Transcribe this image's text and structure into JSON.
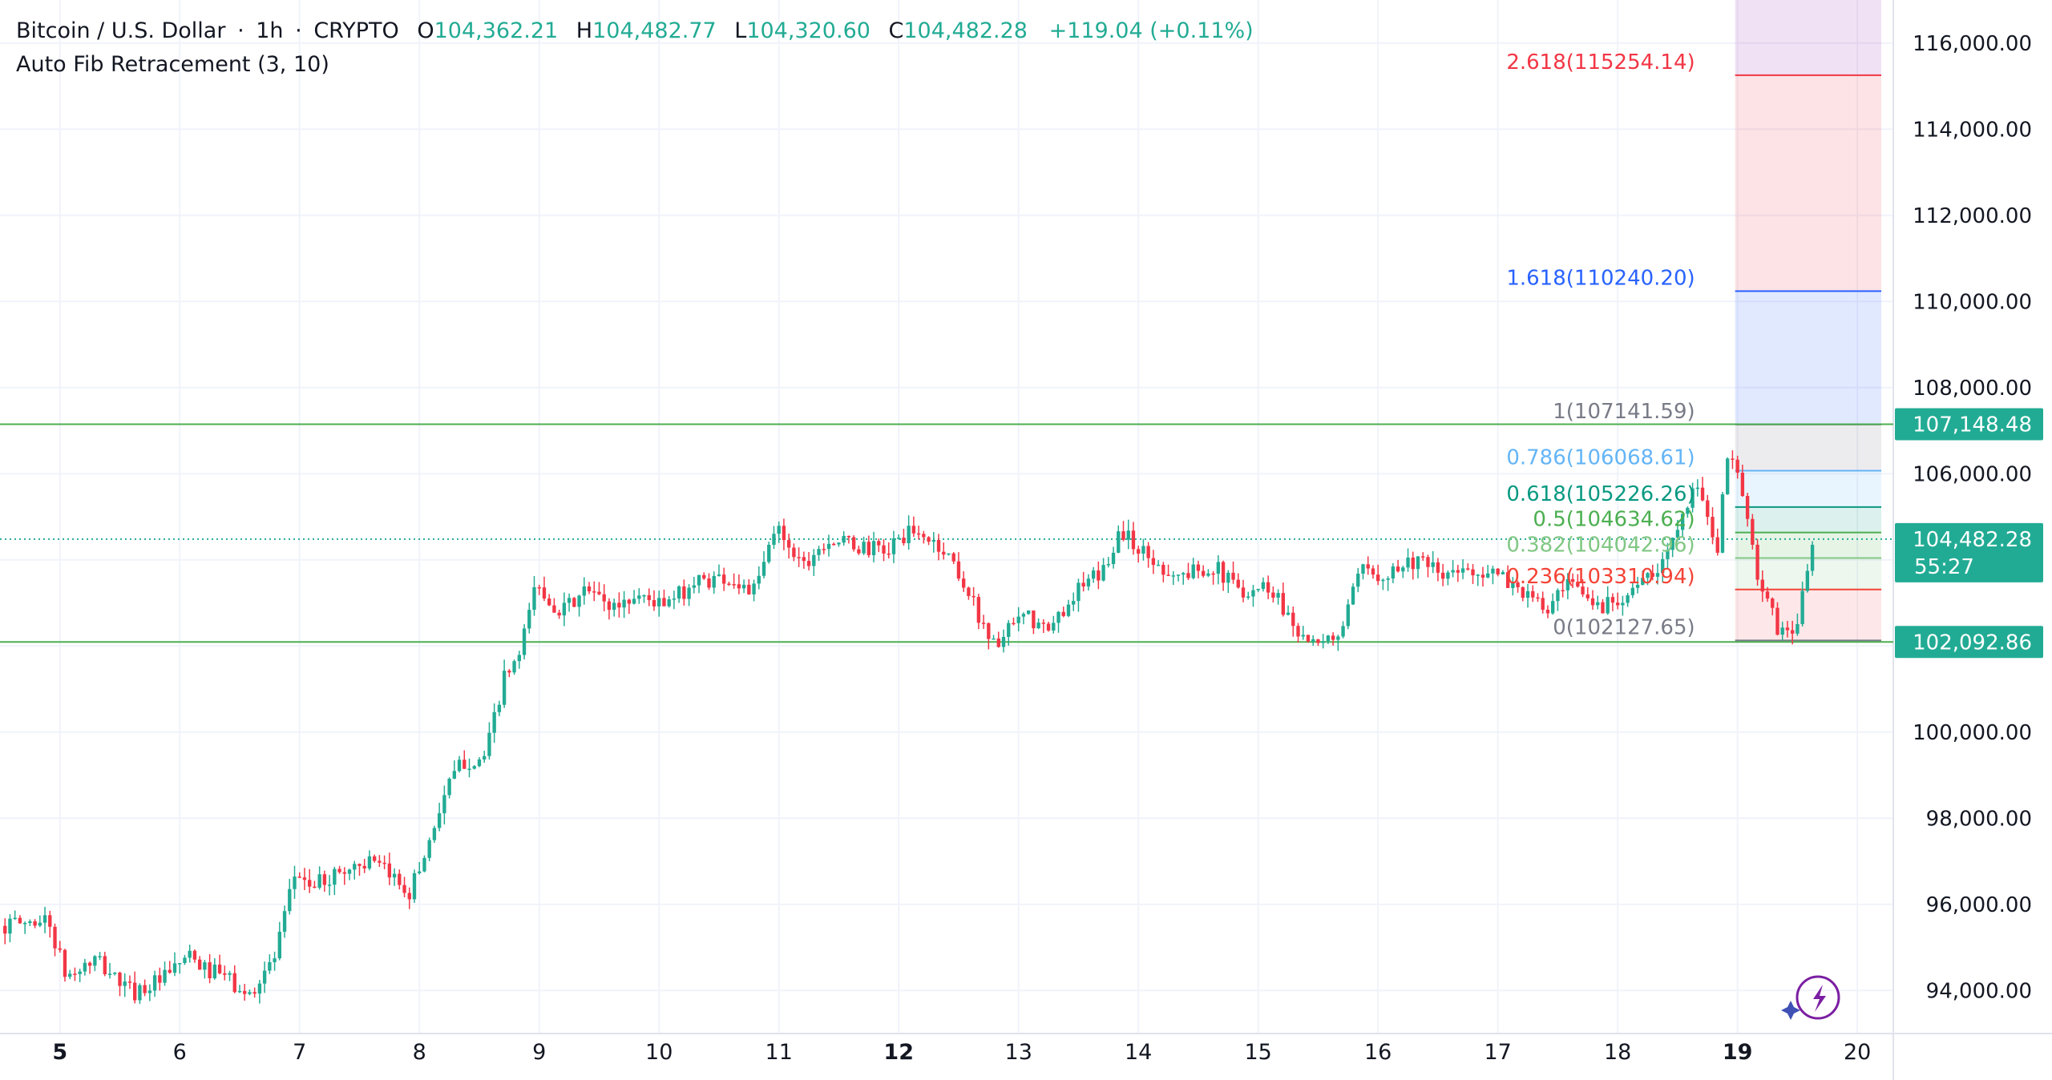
{
  "legend": {
    "symbol": "Bitcoin / U.S. Dollar",
    "interval": "1h",
    "exchange": "CRYPTO",
    "open_label": "O",
    "open": "104,362.21",
    "high_label": "H",
    "high": "104,482.77",
    "low_label": "L",
    "low": "104,320.60",
    "close_label": "C",
    "close": "104,482.28",
    "change": "+119.04 (+0.11%)",
    "indicator": "Auto Fib Retracement (3, 10)"
  },
  "colors": {
    "up": "#22ab94",
    "down": "#f23645",
    "fib_0786": "#64b5f6",
    "fib_0618": "#089981",
    "fib_05": "#4caf50",
    "fib_0382": "#81c784",
    "fib_0236": "#f44336",
    "fib_1": "#787b86",
    "fib_1618": "#2962ff",
    "fib_2618": "#f23645",
    "price_label_bg": "#22ab94",
    "range_line": "#4caf50",
    "grid": "#f0f3fa"
  },
  "chart_data": {
    "type": "candlestick",
    "symbol": "Bitcoin / U.S. Dollar",
    "interval": "1h",
    "y_axis": {
      "min": 93000,
      "max": 117000,
      "ticks": [
        94000,
        96000,
        98000,
        100000,
        102000,
        104000,
        106000,
        108000,
        110000,
        112000,
        114000,
        116000
      ],
      "tick_labels": [
        "94,000.00",
        "96,000.00",
        "98,000.00",
        "100,000.00",
        "",
        "",
        "106,000.00",
        "108,000.00",
        "110,000.00",
        "112,000.00",
        "114,000.00",
        "116,000.00"
      ]
    },
    "x_axis": {
      "min": 4.5,
      "max": 20.3,
      "ticks": [
        5,
        6,
        7,
        8,
        9,
        10,
        11,
        12,
        13,
        14,
        15,
        16,
        17,
        18,
        19,
        20
      ],
      "tick_labels": [
        "5",
        "6",
        "7",
        "8",
        "9",
        "10",
        "11",
        "12",
        "13",
        "14",
        "15",
        "16",
        "17",
        "18",
        "19",
        "20"
      ],
      "bold_ticks": [
        "5",
        "12",
        "19"
      ]
    },
    "path_points": [
      [
        4.5,
        95500
      ],
      [
        4.9,
        95650
      ],
      [
        5.05,
        94300
      ],
      [
        5.3,
        94700
      ],
      [
        5.6,
        93950
      ],
      [
        5.9,
        94300
      ],
      [
        6.05,
        94800
      ],
      [
        6.2,
        94500
      ],
      [
        6.4,
        94300
      ],
      [
        6.55,
        93800
      ],
      [
        6.8,
        94800
      ],
      [
        6.97,
        96800
      ],
      [
        7.1,
        96400
      ],
      [
        7.3,
        96700
      ],
      [
        7.55,
        97000
      ],
      [
        7.8,
        96600
      ],
      [
        7.92,
        96300
      ],
      [
        8.05,
        97200
      ],
      [
        8.2,
        98500
      ],
      [
        8.35,
        99300
      ],
      [
        8.55,
        99400
      ],
      [
        8.7,
        101200
      ],
      [
        8.85,
        101800
      ],
      [
        8.95,
        103400
      ],
      [
        9.2,
        102800
      ],
      [
        9.4,
        103300
      ],
      [
        9.6,
        102900
      ],
      [
        9.85,
        103200
      ],
      [
        10.05,
        102900
      ],
      [
        10.3,
        103500
      ],
      [
        10.55,
        103600
      ],
      [
        10.8,
        103250
      ],
      [
        10.98,
        104800
      ],
      [
        11.2,
        103900
      ],
      [
        11.4,
        104500
      ],
      [
        11.65,
        104300
      ],
      [
        11.9,
        104200
      ],
      [
        12.05,
        104600
      ],
      [
        12.25,
        104500
      ],
      [
        12.45,
        104000
      ],
      [
        12.6,
        103100
      ],
      [
        12.8,
        102000
      ],
      [
        13.05,
        102700
      ],
      [
        13.25,
        102300
      ],
      [
        13.45,
        103200
      ],
      [
        13.7,
        103700
      ],
      [
        13.85,
        104700
      ],
      [
        14.1,
        104000
      ],
      [
        14.35,
        103600
      ],
      [
        14.6,
        103900
      ],
      [
        14.85,
        103300
      ],
      [
        15.1,
        103400
      ],
      [
        15.3,
        102500
      ],
      [
        15.5,
        101900
      ],
      [
        15.7,
        102400
      ],
      [
        15.85,
        103700
      ],
      [
        16.05,
        103700
      ],
      [
        16.3,
        104000
      ],
      [
        16.55,
        103600
      ],
      [
        16.8,
        103800
      ],
      [
        17.0,
        103600
      ],
      [
        17.15,
        103400
      ],
      [
        17.4,
        102800
      ],
      [
        17.6,
        103400
      ],
      [
        17.85,
        102900
      ],
      [
        18.1,
        103300
      ],
      [
        18.35,
        103700
      ],
      [
        18.55,
        105300
      ],
      [
        18.7,
        105700
      ],
      [
        18.82,
        103900
      ],
      [
        18.9,
        106200
      ],
      [
        18.98,
        106500
      ],
      [
        19.1,
        104500
      ],
      [
        19.2,
        103300
      ],
      [
        19.35,
        102300
      ],
      [
        19.5,
        102500
      ],
      [
        19.62,
        104300
      ],
      [
        19.63,
        104482
      ]
    ],
    "last_price": 104482.28,
    "last_price_label": "104,482.28",
    "countdown": "55:27",
    "range_high": 107148.48,
    "range_high_label": "107,148.48",
    "range_low": 102092.86,
    "range_low_label": "102,092.86",
    "fib": {
      "x_start": 18.98,
      "x_end": 20.2,
      "levels": [
        {
          "ratio": "0",
          "price": 102127.65,
          "label": "0(102127.65)",
          "color": "#787b86"
        },
        {
          "ratio": "0.236",
          "price": 103310.94,
          "label": "0.236(103310.94)",
          "color": "#f44336"
        },
        {
          "ratio": "0.382",
          "price": 104042.96,
          "label": "0.382(104042.96)",
          "color": "#81c784"
        },
        {
          "ratio": "0.5",
          "price": 104634.62,
          "label": "0.5(104634.62)",
          "color": "#4caf50"
        },
        {
          "ratio": "0.618",
          "price": 105226.26,
          "label": "0.618(105226.26)",
          "color": "#089981"
        },
        {
          "ratio": "0.786",
          "price": 106068.61,
          "label": "0.786(106068.61)",
          "color": "#64b5f6"
        },
        {
          "ratio": "1",
          "price": 107141.59,
          "label": "1(107141.59)",
          "color": "#787b86"
        },
        {
          "ratio": "1.618",
          "price": 110240.2,
          "label": "1.618(110240.20)",
          "color": "#2962ff"
        },
        {
          "ratio": "2.618",
          "price": 115254.14,
          "label": "2.618(115254.14)",
          "color": "#f23645"
        }
      ],
      "zone_fills": [
        "#f7525f",
        "#81c784",
        "#4caf50",
        "#089981",
        "#64b5f6",
        "#787b86",
        "#2962ff",
        "#f23645",
        "#9c27b0"
      ]
    }
  },
  "icons": {
    "spark": "lightning-sparkle-icon"
  }
}
